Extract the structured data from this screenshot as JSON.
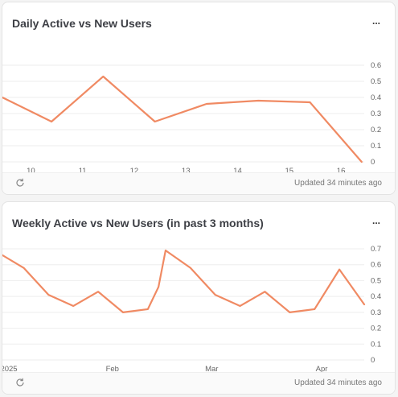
{
  "cards": [
    {
      "title": "Daily Active vs New Users",
      "more_label": "...",
      "updated": "Updated 34 minutes ago",
      "icons": {
        "more": "more-icon",
        "refresh": "refresh-icon"
      }
    },
    {
      "title": "Weekly Active vs New Users (in past 3 months)",
      "more_label": "...",
      "updated": "Updated 34 minutes ago",
      "icons": {
        "more": "more-icon",
        "refresh": "refresh-icon"
      }
    }
  ],
  "colors": {
    "line": "#f08a63",
    "grid": "#eeeeee"
  },
  "chart_data": [
    {
      "type": "line",
      "title": "Daily Active vs New Users",
      "x_ticks": [
        "10",
        "11",
        "12",
        "13",
        "14",
        "15",
        "16"
      ],
      "y_ticks": [
        "0",
        "0.1",
        "0.2",
        "0.3",
        "0.4",
        "0.5",
        "0.6"
      ],
      "ylim": [
        0,
        0.6
      ],
      "xlim": [
        9.45,
        16.45
      ],
      "series": [
        {
          "x": [
            9.45,
            10.4,
            11.4,
            12.4,
            13.4,
            14.4,
            15.4,
            16.4
          ],
          "y": [
            0.4,
            0.25,
            0.53,
            0.25,
            0.36,
            0.38,
            0.37,
            0.0
          ]
        }
      ],
      "grid": "horizontal"
    },
    {
      "type": "line",
      "title": "Weekly Active vs New Users (in past 3 months)",
      "x_ticks": [
        "2025",
        "Feb",
        "Mar",
        "Apr"
      ],
      "y_ticks": [
        "0",
        "0.1",
        "0.2",
        "0.3",
        "0.4",
        "0.5",
        "0.6",
        "0.7"
      ],
      "ylim": [
        0,
        0.7
      ],
      "x_dates": [
        "2025-01-01",
        "2025-02-01",
        "2025-03-01",
        "2025-04-01"
      ],
      "series": [
        {
          "x": [
            "2025-01-01",
            "2025-01-07",
            "2025-01-14",
            "2025-01-21",
            "2025-01-28",
            "2025-02-04",
            "2025-02-11",
            "2025-02-14",
            "2025-02-16",
            "2025-02-23",
            "2025-03-02",
            "2025-03-09",
            "2025-03-16",
            "2025-03-23",
            "2025-03-30",
            "2025-04-06",
            "2025-04-13"
          ],
          "y": [
            0.66,
            0.58,
            0.41,
            0.34,
            0.43,
            0.3,
            0.32,
            0.46,
            0.69,
            0.58,
            0.41,
            0.34,
            0.43,
            0.3,
            0.32,
            0.57,
            0.35
          ]
        }
      ],
      "grid": "horizontal"
    }
  ]
}
